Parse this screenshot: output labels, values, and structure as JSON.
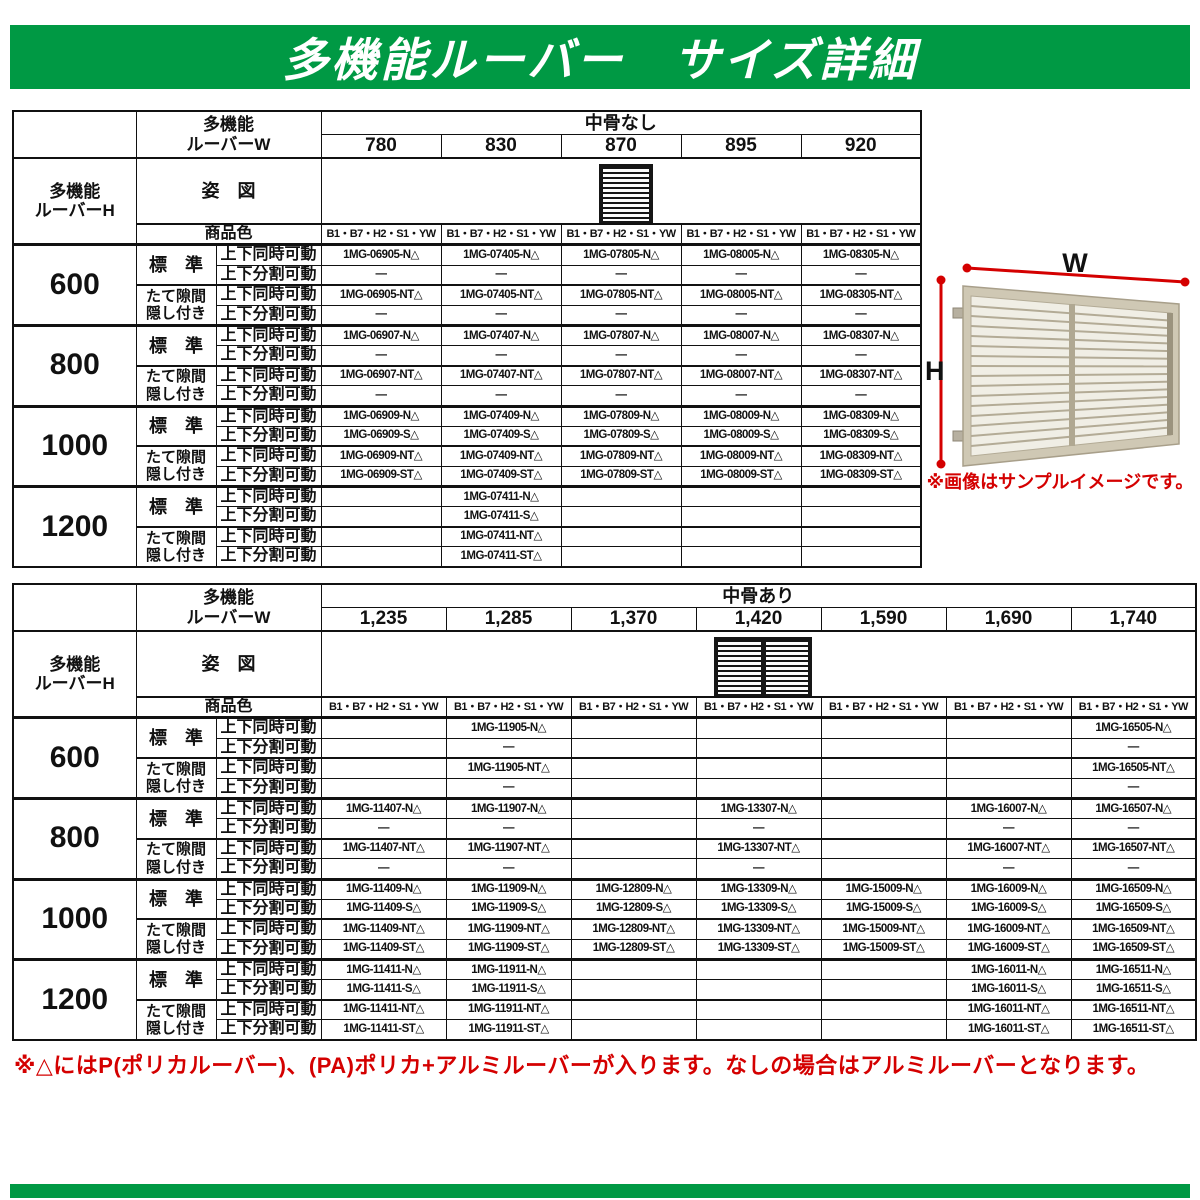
{
  "page": {
    "title": "多機能ルーバー　サイズ詳細",
    "footer_note": "※△にはP(ポリカルーバー)、(PA)ポリカ+アルミルーバーが入ります。なしの場合はアルミルーバーとなります。",
    "colors": {
      "brand_green": "#009944",
      "note_red": "#d40000",
      "table_border": "#111111"
    }
  },
  "common": {
    "w_label_1": "多機能",
    "w_label_2": "ルーバーW",
    "h_label_1": "多機能",
    "h_label_2": "ルーバーH",
    "figure_label": "姿　図",
    "color_label": "商品色",
    "color_codes": "B1・B7・H2・S1・YW",
    "row_type_standard": "標　準",
    "row_type_hidden_1": "たて隙間",
    "row_type_hidden_2": "隠し付き",
    "motion_simul": "上下同時可動",
    "motion_split": "上下分割可動"
  },
  "table1": {
    "group_header": "中骨なし",
    "widths": [
      "780",
      "830",
      "870",
      "895",
      "920"
    ],
    "blocks": [
      {
        "height": "600",
        "rows": [
          [
            "1MG-06905-N△",
            "1MG-07405-N△",
            "1MG-07805-N△",
            "1MG-08005-N△",
            "1MG-08305-N△"
          ],
          [
            "—",
            "—",
            "—",
            "—",
            "—"
          ],
          [
            "1MG-06905-NT△",
            "1MG-07405-NT△",
            "1MG-07805-NT△",
            "1MG-08005-NT△",
            "1MG-08305-NT△"
          ],
          [
            "—",
            "—",
            "—",
            "—",
            "—"
          ]
        ]
      },
      {
        "height": "800",
        "rows": [
          [
            "1MG-06907-N△",
            "1MG-07407-N△",
            "1MG-07807-N△",
            "1MG-08007-N△",
            "1MG-08307-N△"
          ],
          [
            "—",
            "—",
            "—",
            "—",
            "—"
          ],
          [
            "1MG-06907-NT△",
            "1MG-07407-NT△",
            "1MG-07807-NT△",
            "1MG-08007-NT△",
            "1MG-08307-NT△"
          ],
          [
            "—",
            "—",
            "—",
            "—",
            "—"
          ]
        ]
      },
      {
        "height": "1000",
        "rows": [
          [
            "1MG-06909-N△",
            "1MG-07409-N△",
            "1MG-07809-N△",
            "1MG-08009-N△",
            "1MG-08309-N△"
          ],
          [
            "1MG-06909-S△",
            "1MG-07409-S△",
            "1MG-07809-S△",
            "1MG-08009-S△",
            "1MG-08309-S△"
          ],
          [
            "1MG-06909-NT△",
            "1MG-07409-NT△",
            "1MG-07809-NT△",
            "1MG-08009-NT△",
            "1MG-08309-NT△"
          ],
          [
            "1MG-06909-ST△",
            "1MG-07409-ST△",
            "1MG-07809-ST△",
            "1MG-08009-ST△",
            "1MG-08309-ST△"
          ]
        ]
      },
      {
        "height": "1200",
        "rows": [
          [
            "",
            "1MG-07411-N△",
            "",
            "",
            ""
          ],
          [
            "",
            "1MG-07411-S△",
            "",
            "",
            ""
          ],
          [
            "",
            "1MG-07411-NT△",
            "",
            "",
            ""
          ],
          [
            "",
            "1MG-07411-ST△",
            "",
            "",
            ""
          ]
        ]
      }
    ]
  },
  "table2": {
    "group_header": "中骨あり",
    "widths": [
      "1,235",
      "1,285",
      "1,370",
      "1,420",
      "1,590",
      "1,690",
      "1,740"
    ],
    "blocks": [
      {
        "height": "600",
        "rows": [
          [
            "",
            "1MG-11905-N△",
            "",
            "",
            "",
            "",
            "1MG-16505-N△"
          ],
          [
            "",
            "—",
            "",
            "",
            "",
            "",
            "—"
          ],
          [
            "",
            "1MG-11905-NT△",
            "",
            "",
            "",
            "",
            "1MG-16505-NT△"
          ],
          [
            "",
            "—",
            "",
            "",
            "",
            "",
            "—"
          ]
        ]
      },
      {
        "height": "800",
        "rows": [
          [
            "1MG-11407-N△",
            "1MG-11907-N△",
            "",
            "1MG-13307-N△",
            "",
            "1MG-16007-N△",
            "1MG-16507-N△"
          ],
          [
            "—",
            "—",
            "",
            "—",
            "",
            "—",
            "—"
          ],
          [
            "1MG-11407-NT△",
            "1MG-11907-NT△",
            "",
            "1MG-13307-NT△",
            "",
            "1MG-16007-NT△",
            "1MG-16507-NT△"
          ],
          [
            "—",
            "—",
            "",
            "—",
            "",
            "—",
            "—"
          ]
        ]
      },
      {
        "height": "1000",
        "rows": [
          [
            "1MG-11409-N△",
            "1MG-11909-N△",
            "1MG-12809-N△",
            "1MG-13309-N△",
            "1MG-15009-N△",
            "1MG-16009-N△",
            "1MG-16509-N△"
          ],
          [
            "1MG-11409-S△",
            "1MG-11909-S△",
            "1MG-12809-S△",
            "1MG-13309-S△",
            "1MG-15009-S△",
            "1MG-16009-S△",
            "1MG-16509-S△"
          ],
          [
            "1MG-11409-NT△",
            "1MG-11909-NT△",
            "1MG-12809-NT△",
            "1MG-13309-NT△",
            "1MG-15009-NT△",
            "1MG-16009-NT△",
            "1MG-16509-NT△"
          ],
          [
            "1MG-11409-ST△",
            "1MG-11909-ST△",
            "1MG-12809-ST△",
            "1MG-13309-ST△",
            "1MG-15009-ST△",
            "1MG-16009-ST△",
            "1MG-16509-ST△"
          ]
        ]
      },
      {
        "height": "1200",
        "rows": [
          [
            "1MG-11411-N△",
            "1MG-11911-N△",
            "",
            "",
            "",
            "1MG-16011-N△",
            "1MG-16511-N△"
          ],
          [
            "1MG-11411-S△",
            "1MG-11911-S△",
            "",
            "",
            "",
            "1MG-16011-S△",
            "1MG-16511-S△"
          ],
          [
            "1MG-11411-NT△",
            "1MG-11911-NT△",
            "",
            "",
            "",
            "1MG-16011-NT△",
            "1MG-16511-NT△"
          ],
          [
            "1MG-11411-ST△",
            "1MG-11911-ST△",
            "",
            "",
            "",
            "1MG-16011-ST△",
            "1MG-16511-ST△"
          ]
        ]
      }
    ]
  },
  "sample": {
    "w_label": "W",
    "h_label": "H",
    "caption": "※画像はサンプルイメージです。"
  }
}
